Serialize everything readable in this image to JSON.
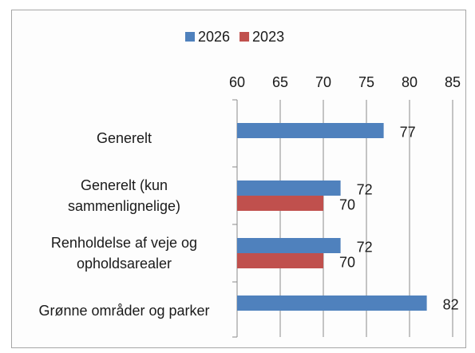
{
  "chart_data": {
    "type": "bar",
    "orientation": "horizontal",
    "categories": [
      "Generelt",
      "Generelt (kun sammenlignelige)",
      "Renholdelse af veje og opholdsarealer",
      "Grønne områder og parker"
    ],
    "series": [
      {
        "name": "2026",
        "color": "#4f81bd",
        "values": [
          77,
          72,
          72,
          82
        ]
      },
      {
        "name": "2023",
        "color": "#c0504d",
        "values": [
          null,
          70,
          70,
          null
        ]
      }
    ],
    "xlim": [
      60,
      85
    ],
    "xticks": [
      60,
      65,
      70,
      75,
      80,
      85
    ],
    "grid": true,
    "legend": "top"
  }
}
